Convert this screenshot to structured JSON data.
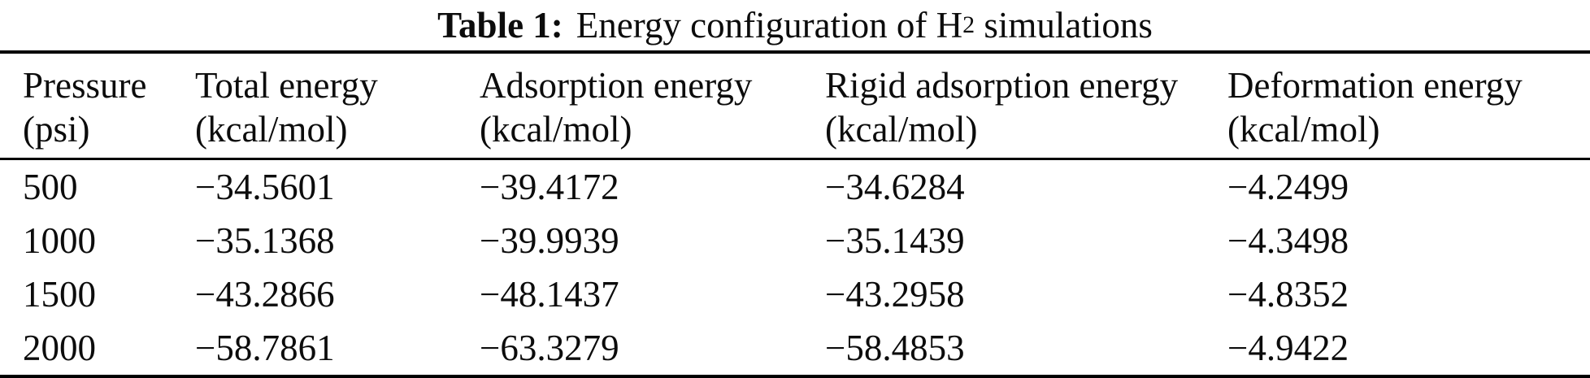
{
  "caption": {
    "label_bold": "Table 1:",
    "text_pre": "Energy configuration of H",
    "subscript": "2",
    "text_post": " simulations"
  },
  "table": {
    "columns": [
      {
        "line1": "Pressure",
        "line2": "(psi)"
      },
      {
        "line1": "Total energy",
        "line2": "(kcal/mol)"
      },
      {
        "line1": "Adsorption energy",
        "line2": "(kcal/mol)"
      },
      {
        "line1": "Rigid adsorption energy",
        "line2": "(kcal/mol)"
      },
      {
        "line1": "Deformation energy",
        "line2": "(kcal/mol)"
      }
    ],
    "rows": [
      {
        "pressure": "500",
        "total_energy": "−34.5601",
        "adsorption_energy": "−39.4172",
        "rigid_adsorption_energy": "−34.6284",
        "deformation_energy": "−4.2499"
      },
      {
        "pressure": "1000",
        "total_energy": "−35.1368",
        "adsorption_energy": "−39.9939",
        "rigid_adsorption_energy": "−35.1439",
        "deformation_energy": "−4.3498"
      },
      {
        "pressure": "1500",
        "total_energy": "−43.2866",
        "adsorption_energy": "−48.1437",
        "rigid_adsorption_energy": "−43.2958",
        "deformation_energy": "−4.8352"
      },
      {
        "pressure": "2000",
        "total_energy": "−58.7861",
        "adsorption_energy": "−63.3279",
        "rigid_adsorption_energy": "−58.4853",
        "deformation_energy": "−4.9422"
      }
    ]
  }
}
